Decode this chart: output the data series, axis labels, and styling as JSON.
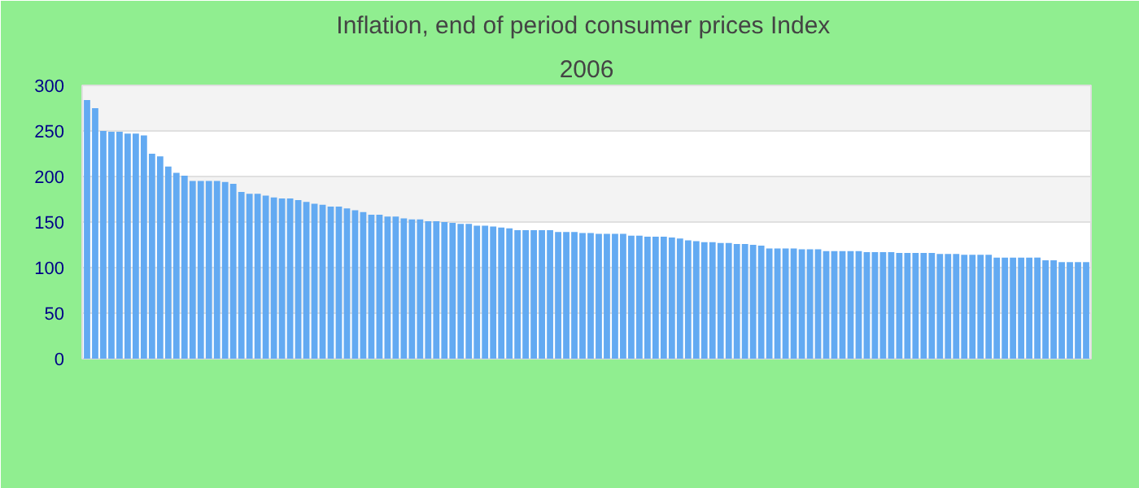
{
  "chart_data": {
    "type": "bar",
    "title": "Inflation, end of period consumer prices  Index",
    "subtitle": "2006",
    "categories": [
      null,
      null,
      null,
      null,
      null,
      null,
      null,
      null,
      null,
      null,
      null,
      null,
      null,
      null,
      null,
      null,
      null,
      null,
      null,
      null,
      null,
      null,
      null,
      null,
      null,
      null,
      null,
      null,
      null,
      null,
      null,
      null,
      null,
      null,
      null,
      null,
      null,
      null,
      null,
      null,
      null,
      null,
      null,
      null,
      null,
      null,
      null,
      null,
      null,
      null,
      null,
      null,
      null,
      null,
      null,
      null,
      null,
      null,
      null,
      null,
      null,
      null,
      null,
      null,
      null,
      null,
      null,
      null,
      null,
      null,
      null,
      null,
      null,
      null,
      null,
      null,
      null,
      null,
      null,
      null,
      null,
      null,
      null,
      null,
      null,
      null,
      null,
      null,
      null,
      null,
      null,
      null,
      null,
      null,
      null,
      null,
      null,
      null,
      null,
      null,
      null,
      null,
      null,
      null,
      null,
      null,
      null,
      null,
      null,
      null,
      null,
      null,
      null,
      null,
      null,
      null,
      null,
      null,
      null,
      null,
      null,
      null,
      null,
      null
    ],
    "values": [
      284,
      275,
      250,
      249,
      249,
      247,
      247,
      245,
      225,
      222,
      211,
      204,
      201,
      195,
      195,
      195,
      195,
      194,
      192,
      183,
      181,
      181,
      179,
      177,
      176,
      176,
      174,
      172,
      170,
      169,
      167,
      167,
      165,
      163,
      161,
      158,
      158,
      156,
      156,
      154,
      153,
      153,
      151,
      151,
      150,
      149,
      148,
      148,
      146,
      146,
      145,
      144,
      143,
      141,
      141,
      141,
      141,
      141,
      139,
      139,
      139,
      138,
      138,
      137,
      137,
      137,
      137,
      135,
      135,
      134,
      134,
      134,
      133,
      132,
      130,
      129,
      128,
      128,
      127,
      127,
      126,
      126,
      125,
      124,
      121,
      121,
      121,
      121,
      120,
      120,
      120,
      118,
      118,
      118,
      118,
      118,
      117,
      117,
      117,
      117,
      116,
      116,
      116,
      116,
      116,
      115,
      115,
      115,
      114,
      114,
      114,
      114,
      111,
      111,
      111,
      111,
      111,
      111,
      108,
      108,
      106,
      106,
      106,
      106
    ],
    "color": "#63aaf2",
    "ylim": [
      0,
      300
    ],
    "yticks": [
      0,
      50,
      100,
      150,
      200,
      250,
      300
    ],
    "grid": "y",
    "tick_labels": "y"
  }
}
